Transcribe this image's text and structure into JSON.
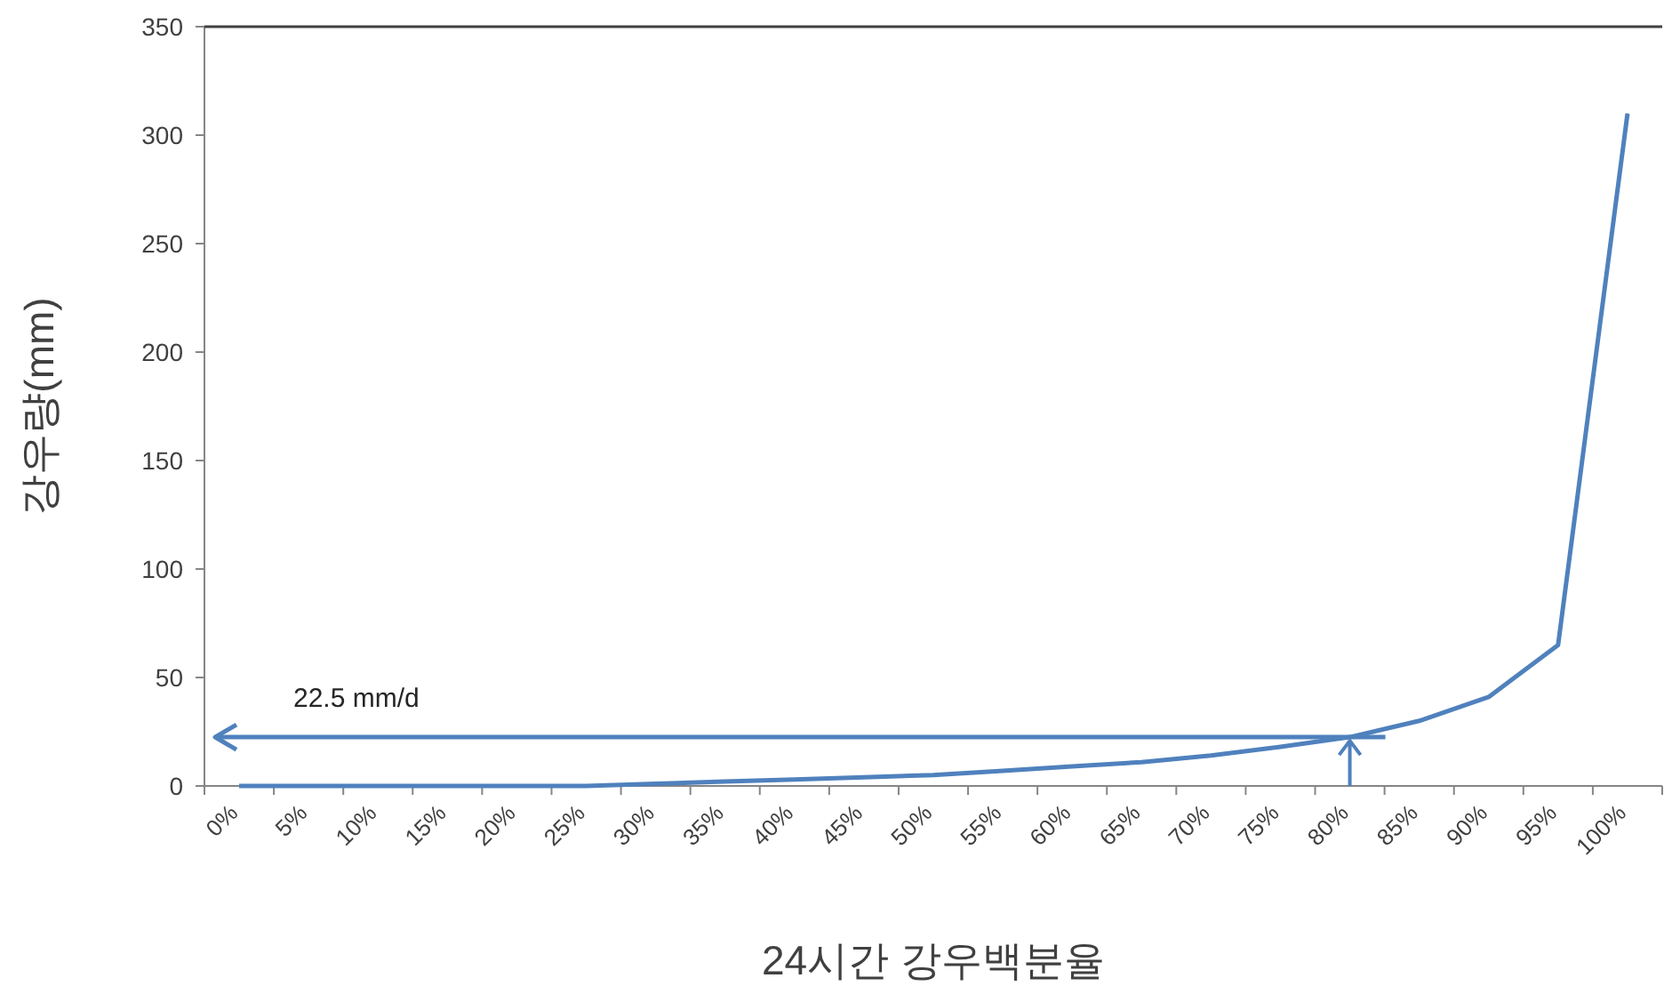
{
  "chart_data": {
    "type": "line",
    "xlabel": "24시간 강우백분율",
    "ylabel": "강우량(mm)",
    "categories": [
      "0%",
      "5%",
      "10%",
      "15%",
      "20%",
      "25%",
      "30%",
      "35%",
      "40%",
      "45%",
      "50%",
      "55%",
      "60%",
      "65%",
      "70%",
      "75%",
      "80%",
      "85%",
      "90%",
      "95%",
      "100%"
    ],
    "series": [
      {
        "color": "#4f81bd",
        "values": [
          0,
          0,
          0,
          0,
          0,
          0,
          1,
          2,
          3,
          4,
          5,
          7,
          9,
          11,
          14,
          18,
          22.5,
          30,
          41,
          65,
          310
        ]
      }
    ],
    "ylim": [
      0,
      350
    ],
    "yticks": [
      0,
      50,
      100,
      150,
      200,
      250,
      300,
      350
    ],
    "grid": false,
    "marker": "none",
    "line_style": "solid",
    "ref_lines": [
      {
        "axis": "y",
        "value": 22.5,
        "label": "22.5 mm/d",
        "color": "#4f81bd"
      }
    ]
  }
}
